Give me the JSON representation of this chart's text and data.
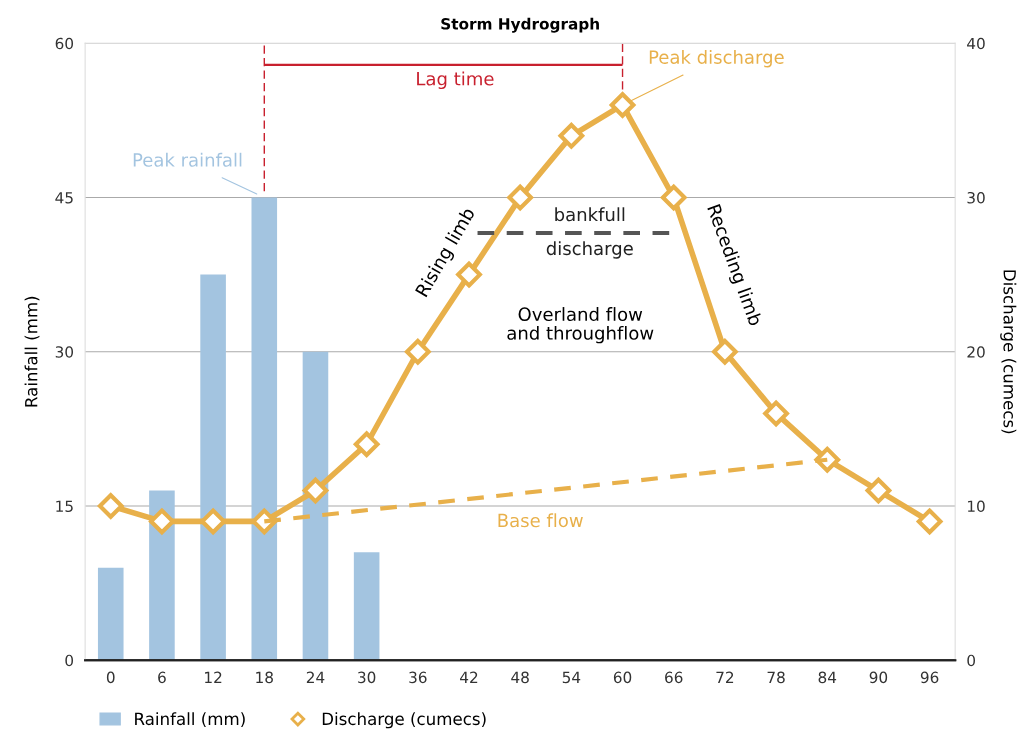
{
  "chart_data": {
    "type": "bar",
    "title": "Storm Hydrograph",
    "ylabel": "Rainfall (mm)",
    "y2label": "Discharge (cumecs)",
    "xlim": [
      -3,
      99
    ],
    "xticks": [
      0,
      6,
      12,
      18,
      24,
      30,
      36,
      42,
      48,
      54,
      60,
      66,
      72,
      78,
      84,
      90,
      96
    ],
    "ylim": [
      0,
      60
    ],
    "yticks": [
      0,
      15,
      30,
      45,
      60
    ],
    "y2lim": [
      0,
      40
    ],
    "y2ticks": [
      0,
      10,
      20,
      30,
      40
    ],
    "grid": "y",
    "legend": "bottom left",
    "series": [
      {
        "name": "Rainfall (mm)",
        "color": "#a3c4e0",
        "x": [
          0,
          6,
          12,
          18,
          24,
          30
        ],
        "values": [
          9,
          16.5,
          37.5,
          45,
          30,
          10.5
        ]
      },
      {
        "name": "Discharge (cumecs)",
        "type": "line",
        "axis": "y2",
        "color": "#e8b04a",
        "marker": "diamond",
        "line_style": "solid",
        "x": [
          0,
          6,
          12,
          18,
          24,
          30,
          36,
          42,
          48,
          54,
          60,
          66,
          72,
          78,
          84,
          90,
          96
        ],
        "values": [
          10,
          9,
          9,
          9,
          11,
          14,
          20,
          25,
          30,
          34,
          36,
          30,
          20,
          16,
          13,
          11,
          9
        ]
      },
      {
        "type": "line",
        "axis": "y2",
        "color": "#e8b04a",
        "line_style": "dashed",
        "x": [
          18,
          84
        ],
        "values": [
          9,
          13
        ]
      },
      {
        "type": "line",
        "axis": "y2",
        "color": "#555555",
        "line_style": "dashed",
        "x": [
          43,
          66
        ],
        "values": [
          27.7,
          27.7
        ]
      }
    ],
    "annotations": [
      "Lag time",
      {
        "text": "Peak rainfall",
        "x": 18,
        "y": 45
      },
      {
        "text": "Peak discharge",
        "x": 60,
        "y": 54
      },
      "Rising limb",
      "Receding limb",
      "bankfull\ndischarge",
      "Overland flow\nand throughflow",
      "Base flow"
    ]
  }
}
